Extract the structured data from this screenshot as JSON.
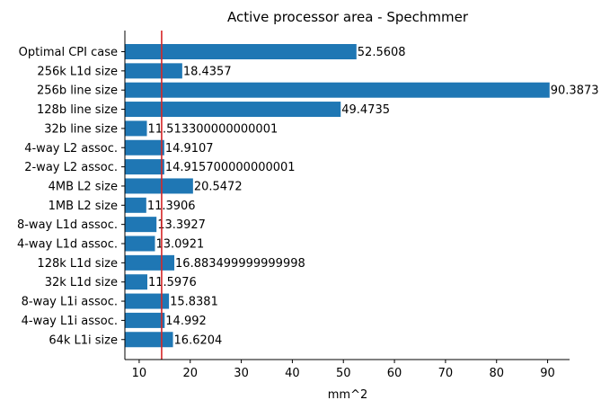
{
  "chart_data": {
    "type": "bar",
    "orientation": "horizontal",
    "title": "Active processor area - Spechmmer",
    "xlabel": "mm^2",
    "ylabel": "",
    "xlim": [
      7.2,
      94.3
    ],
    "xticks": [
      10,
      20,
      30,
      40,
      50,
      60,
      70,
      80,
      90
    ],
    "bar_color": "#1f77b4",
    "reference_line": {
      "x": 14.4,
      "color": "#d62728"
    },
    "grid": false,
    "categories": [
      "Optimal CPI case",
      "256k L1d size",
      "256b line size",
      "128b line size",
      "32b line size",
      "4-way L2 assoc.",
      "2-way L2 assoc.",
      "4MB L2 size",
      "1MB L2 size",
      "8-way L1d assoc.",
      "4-way L1d assoc.",
      "128k L1d size",
      "32k L1d size",
      "8-way L1i assoc.",
      "4-way L1i assoc.",
      "64k L1i size"
    ],
    "values": [
      52.5608,
      18.4357,
      90.3873,
      49.4735,
      11.513300000000001,
      14.9107,
      14.915700000000001,
      20.5472,
      11.3906,
      13.3927,
      13.0921,
      16.883499999999998,
      11.5976,
      15.8381,
      14.992,
      16.6204
    ],
    "value_labels": [
      "52.5608",
      "18.4357",
      "90.3873",
      "49.4735",
      "11.513300000000001",
      "14.9107",
      "14.915700000000001",
      "20.5472",
      "11.3906",
      "13.3927",
      "13.0921",
      "16.883499999999998",
      "11.5976",
      "15.8381",
      "14.992",
      "16.6204"
    ]
  }
}
